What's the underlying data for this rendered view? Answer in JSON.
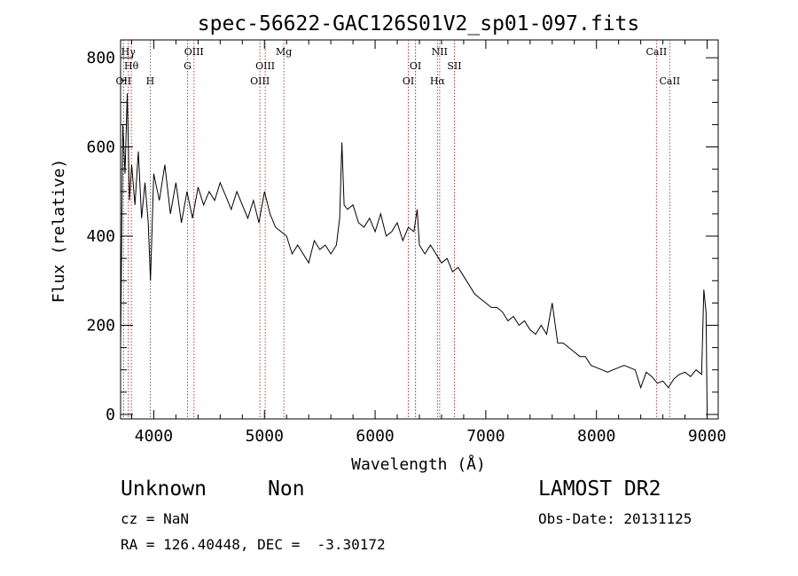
{
  "chart_data": {
    "type": "line",
    "title": "spec-56622-GAC126S01V2_sp01-097.fits",
    "xlabel": "Wavelength (Å)",
    "ylabel": "Flux (relative)",
    "xlim": [
      3700,
      9100
    ],
    "ylim": [
      -10,
      840
    ],
    "grid": false,
    "x_ticks": [
      4000,
      5000,
      6000,
      7000,
      8000,
      9000
    ],
    "x_tick_labels": [
      "4000",
      "5000",
      "6000",
      "7000",
      "8000",
      "9000"
    ],
    "y_ticks": [
      0,
      200,
      400,
      600,
      800
    ],
    "y_tick_labels": [
      "0",
      "200",
      "400",
      "600",
      "800"
    ],
    "series": [
      {
        "x": [
          3700,
          3720,
          3740,
          3760,
          3780,
          3800,
          3830,
          3860,
          3890,
          3920,
          3950,
          3970,
          4000,
          4050,
          4100,
          4150,
          4200,
          4250,
          4300,
          4350,
          4400,
          4450,
          4500,
          4550,
          4600,
          4650,
          4700,
          4750,
          4800,
          4850,
          4900,
          4950,
          5000,
          5050,
          5100,
          5150,
          5200,
          5250,
          5300,
          5350,
          5400,
          5450,
          5500,
          5550,
          5600,
          5650,
          5680,
          5700,
          5720,
          5750,
          5800,
          5850,
          5900,
          5950,
          6000,
          6050,
          6100,
          6150,
          6200,
          6250,
          6300,
          6350,
          6380,
          6400,
          6450,
          6500,
          6550,
          6600,
          6650,
          6700,
          6750,
          6800,
          6850,
          6900,
          6950,
          7000,
          7050,
          7100,
          7150,
          7200,
          7250,
          7300,
          7350,
          7400,
          7450,
          7500,
          7550,
          7600,
          7650,
          7700,
          7750,
          7800,
          7850,
          7900,
          7950,
          8000,
          8050,
          8100,
          8150,
          8200,
          8250,
          8300,
          8350,
          8400,
          8450,
          8500,
          8550,
          8600,
          8650,
          8700,
          8750,
          8800,
          8850,
          8900,
          8950,
          8970,
          8990,
          9000
        ],
        "y": [
          150,
          650,
          540,
          720,
          480,
          560,
          470,
          590,
          440,
          520,
          430,
          300,
          540,
          480,
          560,
          450,
          520,
          430,
          500,
          440,
          510,
          470,
          500,
          480,
          520,
          490,
          460,
          500,
          470,
          440,
          480,
          430,
          500,
          450,
          420,
          410,
          400,
          360,
          380,
          360,
          340,
          390,
          370,
          380,
          360,
          380,
          440,
          610,
          470,
          460,
          470,
          430,
          420,
          440,
          410,
          450,
          400,
          410,
          430,
          390,
          420,
          410,
          460,
          380,
          360,
          380,
          360,
          340,
          350,
          320,
          330,
          310,
          290,
          270,
          260,
          250,
          240,
          240,
          230,
          210,
          220,
          200,
          210,
          190,
          180,
          200,
          180,
          250,
          160,
          160,
          150,
          140,
          130,
          130,
          110,
          105,
          100,
          95,
          100,
          105,
          110,
          105,
          100,
          60,
          95,
          85,
          70,
          75,
          60,
          80,
          90,
          95,
          85,
          100,
          90,
          280,
          230,
          10
        ]
      }
    ],
    "lines": [
      {
        "label": "OII",
        "x": 3727,
        "row": 3
      },
      {
        "label": "Hγ",
        "x": 3770,
        "row": 1
      },
      {
        "label": "Hθ",
        "x": 3797,
        "row": 2
      },
      {
        "label": "H",
        "x": 3968,
        "row": 3
      },
      {
        "label": "OIII",
        "x": 4363,
        "row": 1
      },
      {
        "label": "G",
        "x": 4305,
        "row": 2
      },
      {
        "label": "OIII",
        "x": 4959,
        "row": 3
      },
      {
        "label": "OIII",
        "x": 5007,
        "row": 2
      },
      {
        "label": "Mg",
        "x": 5175,
        "row": 1
      },
      {
        "label": "OI",
        "x": 6300,
        "row": 3
      },
      {
        "label": "OI",
        "x": 6364,
        "row": 2
      },
      {
        "label": "NII",
        "x": 6583,
        "row": 1
      },
      {
        "label": "Hα",
        "x": 6563,
        "row": 3
      },
      {
        "label": "SII",
        "x": 6716,
        "row": 2
      },
      {
        "label": "CaII",
        "x": 8542,
        "row": 1
      },
      {
        "label": "CaII",
        "x": 8662,
        "row": 3
      }
    ]
  },
  "info": {
    "class": "Unknown",
    "subclass": "Non",
    "survey": "LAMOST DR2",
    "cz": "cz = NaN",
    "obs_date": "Obs-Date: 20131125",
    "coords": "RA = 126.40448, DEC =  -3.30172"
  }
}
